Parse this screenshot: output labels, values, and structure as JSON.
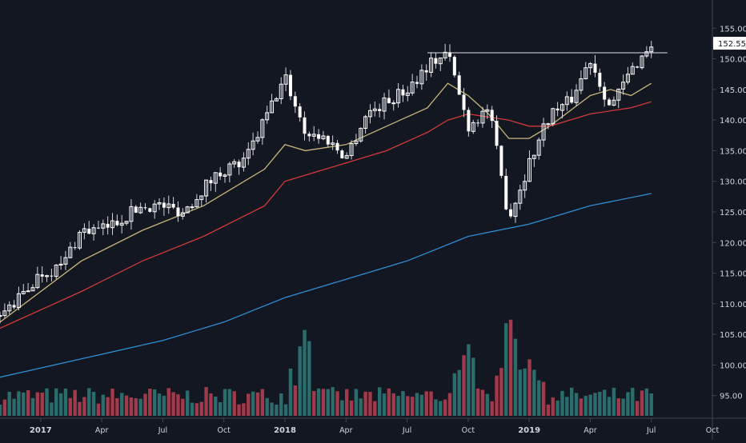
{
  "chart_data": {
    "type": "candlestick",
    "x_axis": {
      "tick_labels": [
        "2017",
        "Apr",
        "Jul",
        "Oct",
        "2018",
        "Apr",
        "Jul",
        "Oct",
        "2019",
        "Apr",
        "Jul",
        "Oct"
      ],
      "bold_labels": [
        "2017",
        "2018",
        "2019"
      ],
      "range": [
        "2016-11",
        "2019-10"
      ]
    },
    "y_axis": {
      "ticks": [
        95,
        100,
        105,
        110,
        115,
        120,
        125,
        130,
        135,
        140,
        145,
        150,
        155
      ],
      "tick_labels": [
        "95.00",
        "100.00",
        "105.00",
        "110.00",
        "115.00",
        "120.00",
        "125.00",
        "130.00",
        "135.00",
        "140.00",
        "145.00",
        "150.00",
        "155.00"
      ],
      "range": [
        93,
        157
      ]
    },
    "last_price": {
      "value": 152.55,
      "label": "152.55"
    },
    "resistance_line": {
      "value": 151.0,
      "from": "2018-08",
      "to": "2019-07"
    },
    "price_path": [
      [
        "2016-11",
        108
      ],
      [
        "2016-12",
        111
      ],
      [
        "2017-01",
        115
      ],
      [
        "2017-02",
        116
      ],
      [
        "2017-03",
        122
      ],
      [
        "2017-04",
        122
      ],
      [
        "2017-05",
        124
      ],
      [
        "2017-06",
        126
      ],
      [
        "2017-07",
        126
      ],
      [
        "2017-08",
        125
      ],
      [
        "2017-09",
        129
      ],
      [
        "2017-10",
        132
      ],
      [
        "2017-11",
        133
      ],
      [
        "2017-12",
        140
      ],
      [
        "2018-01",
        147
      ],
      [
        "2018-02",
        138
      ],
      [
        "2018-03",
        137
      ],
      [
        "2018-04",
        134
      ],
      [
        "2018-05",
        141
      ],
      [
        "2018-06",
        143
      ],
      [
        "2018-07",
        145
      ],
      [
        "2018-08",
        149
      ],
      [
        "2018-09",
        151
      ],
      [
        "2018-10",
        139
      ],
      [
        "2018-11",
        142
      ],
      [
        "2018-12",
        124
      ],
      [
        "2019-01",
        133
      ],
      [
        "2019-02",
        141
      ],
      [
        "2019-03",
        143
      ],
      [
        "2019-04",
        150
      ],
      [
        "2019-05",
        142
      ],
      [
        "2019-06",
        148
      ],
      [
        "2019-07",
        152.5
      ]
    ],
    "moving_averages": [
      {
        "color": "#c8b67a",
        "points": [
          [
            "2016-11",
            107
          ],
          [
            "2017-03",
            117
          ],
          [
            "2017-06",
            122
          ],
          [
            "2017-09",
            126
          ],
          [
            "2017-12",
            132
          ],
          [
            "2018-01",
            136
          ],
          [
            "2018-02",
            135
          ],
          [
            "2018-04",
            136
          ],
          [
            "2018-06",
            139
          ],
          [
            "2018-08",
            142
          ],
          [
            "2018-09",
            146
          ],
          [
            "2018-10",
            144
          ],
          [
            "2018-11",
            141
          ],
          [
            "2018-12",
            137
          ],
          [
            "2019-01",
            137
          ],
          [
            "2019-02",
            139
          ],
          [
            "2019-04",
            144
          ],
          [
            "2019-05",
            145
          ],
          [
            "2019-06",
            144
          ],
          [
            "2019-07",
            146
          ]
        ]
      },
      {
        "color": "#d03a3a",
        "points": [
          [
            "2016-11",
            106
          ],
          [
            "2017-03",
            112
          ],
          [
            "2017-06",
            117
          ],
          [
            "2017-09",
            121
          ],
          [
            "2017-12",
            126
          ],
          [
            "2018-01",
            130
          ],
          [
            "2018-04",
            133
          ],
          [
            "2018-06",
            135
          ],
          [
            "2018-08",
            138
          ],
          [
            "2018-09",
            140
          ],
          [
            "2018-10",
            141
          ],
          [
            "2018-12",
            140
          ],
          [
            "2019-01",
            139
          ],
          [
            "2019-02",
            139
          ],
          [
            "2019-04",
            141
          ],
          [
            "2019-06",
            142
          ],
          [
            "2019-07",
            143
          ]
        ]
      },
      {
        "color": "#2d8fd5",
        "points": [
          [
            "2016-11",
            98
          ],
          [
            "2017-03",
            101
          ],
          [
            "2017-07",
            104
          ],
          [
            "2017-10",
            107
          ],
          [
            "2018-01",
            111
          ],
          [
            "2018-04",
            114
          ],
          [
            "2018-07",
            117
          ],
          [
            "2018-10",
            121
          ],
          [
            "2019-01",
            123
          ],
          [
            "2019-04",
            126
          ],
          [
            "2019-07",
            128
          ]
        ]
      }
    ],
    "volume": {
      "colors": {
        "up": "#2a6d6c",
        "down": "#a13a4a"
      },
      "relative_spikes": [
        [
          "2018-02",
          0.85
        ],
        [
          "2018-10",
          0.7
        ],
        [
          "2018-12",
          1.0
        ],
        [
          "2019-01",
          0.55
        ]
      ]
    },
    "colors": {
      "background": "#131722",
      "up": "#ffffff",
      "down": "#ffffff",
      "wick": "#d1d4dc",
      "grid": "#2a2e39",
      "text": "#d1d4dc"
    }
  }
}
